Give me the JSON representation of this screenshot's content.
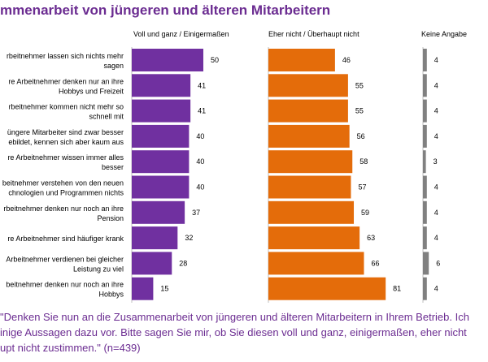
{
  "title": "mmenarbeit von jüngeren und älteren Mitarbeitern",
  "chart_data": {
    "type": "bar",
    "categories": [
      [
        "rbeitnehmer lassen sich nichts mehr",
        "sagen"
      ],
      [
        "re Arbeitnehmer denken nur an ihre",
        "Hobbys und Freizeit"
      ],
      [
        "rbeitnehmer kommen nicht mehr so",
        "schnell mit"
      ],
      [
        "üngere Mitarbeiter sind zwar besser",
        "ebildet, kennen sich aber kaum aus"
      ],
      [
        "re Arbeitnehmer wissen immer alles",
        "besser"
      ],
      [
        "beitnehmer verstehen von den neuen",
        "chnologien und Programmen nichts"
      ],
      [
        "rbeitnehmer denken nur noch an ihre",
        "Pension"
      ],
      [
        "re Arbeitnehmer sind häufiger krank"
      ],
      [
        "Arbeitnehmer verdienen bei gleicher",
        "Leistung zu viel"
      ],
      [
        "beitnehmer denken nur noch an ihre",
        "Hobbys"
      ]
    ],
    "series": [
      {
        "name": "Voll und ganz /   Einigermaßen",
        "color": "#7030a0",
        "values": [
          50,
          41,
          41,
          40,
          40,
          40,
          37,
          32,
          28,
          15
        ]
      },
      {
        "name": "Eher nicht / Überhaupt nicht",
        "color": "#e46c0a",
        "values": [
          46,
          55,
          55,
          56,
          58,
          57,
          59,
          63,
          66,
          81
        ]
      },
      {
        "name": "Keine Angabe",
        "color": "#808080",
        "values": [
          4,
          4,
          4,
          4,
          3,
          4,
          4,
          4,
          6,
          4
        ]
      }
    ],
    "grid": false,
    "legend": "top"
  },
  "footnote": [
    "\"Denken Sie nun an die Zusammenarbeit von jüngeren und älteren Mitarbeitern in Ihrem Betrieb. Ich",
    "inige Aussagen dazu vor. Bitte sagen Sie mir, ob Sie diesen voll und ganz, einigermaßen, eher nicht",
    "upt nicht zustimmen.\" (n=439)"
  ]
}
